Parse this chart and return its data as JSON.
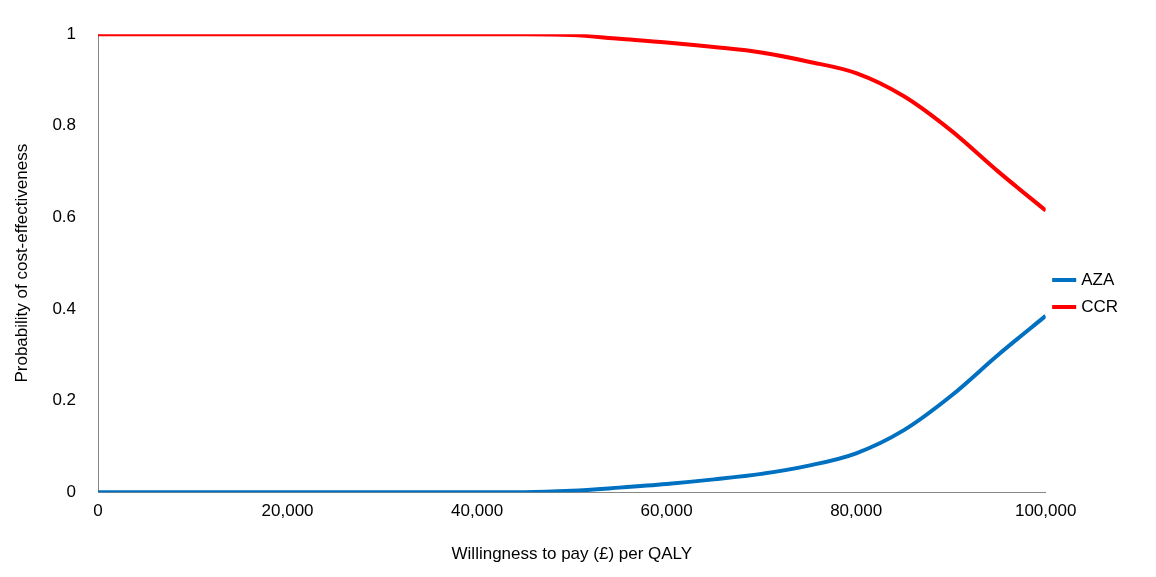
{
  "chart_data": {
    "type": "line",
    "xlabel": "Willingness to pay (£) per QALY",
    "ylabel": "Probability of cost-effectiveness",
    "x": [
      0,
      5000,
      10000,
      15000,
      20000,
      25000,
      30000,
      35000,
      40000,
      45000,
      50000,
      55000,
      60000,
      65000,
      70000,
      75000,
      80000,
      85000,
      90000,
      95000,
      100000
    ],
    "series": [
      {
        "name": "AZA",
        "color": "#0070c0",
        "values": [
          0,
          0,
          0,
          0,
          0,
          0,
          0,
          0,
          0,
          0,
          0.003,
          0.01,
          0.018,
          0.028,
          0.04,
          0.058,
          0.085,
          0.135,
          0.21,
          0.3,
          0.385
        ]
      },
      {
        "name": "CCR",
        "color": "#ff0000",
        "values": [
          1,
          1,
          1,
          1,
          1,
          1,
          1,
          1,
          1,
          1,
          0.998,
          0.99,
          0.982,
          0.972,
          0.96,
          0.94,
          0.915,
          0.865,
          0.79,
          0.7,
          0.615
        ]
      }
    ],
    "xlim": [
      0,
      100000
    ],
    "xticks": [
      0,
      {
        "value": 20000,
        "label": "20,000"
      },
      {
        "value": 40000,
        "label": "40,000"
      },
      {
        "value": 60000,
        "label": "60,000"
      },
      {
        "value": 80000,
        "label": "80,000"
      },
      {
        "value": 100000,
        "label": "100,000"
      }
    ],
    "ylim": [
      0,
      1
    ],
    "yticks": [
      0,
      0.2,
      0.4,
      0.6,
      0.8,
      1
    ],
    "grid": false,
    "legend": "right",
    "marker": "none",
    "line_style": "solid"
  }
}
